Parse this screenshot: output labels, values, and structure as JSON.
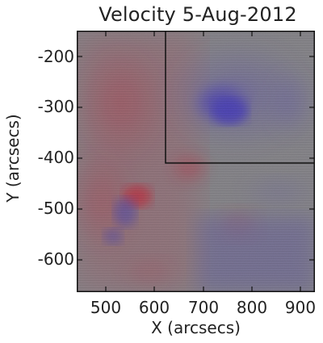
{
  "figure": {
    "title": "Velocity 5-Aug-2012",
    "xlabel": "X (arcsecs)",
    "ylabel": "Y (arcsecs)"
  },
  "axes": {
    "x_ticks": [
      "500",
      "600",
      "700",
      "800",
      "900"
    ],
    "y_ticks": [
      "-200",
      "-300",
      "-400",
      "-500",
      "-600"
    ],
    "x_range": [
      440,
      925
    ],
    "y_range": [
      -660,
      -148
    ]
  },
  "image": {
    "description_colors": {
      "neutral": "#8c8c8c",
      "redshift": "#c8283c",
      "blueshift": "#4b3cc8",
      "frame": "#111111"
    }
  },
  "overlay_box": {
    "x_range_arcsec": [
      622,
      925
    ],
    "y_range_arcsec": [
      -408,
      -148
    ]
  }
}
